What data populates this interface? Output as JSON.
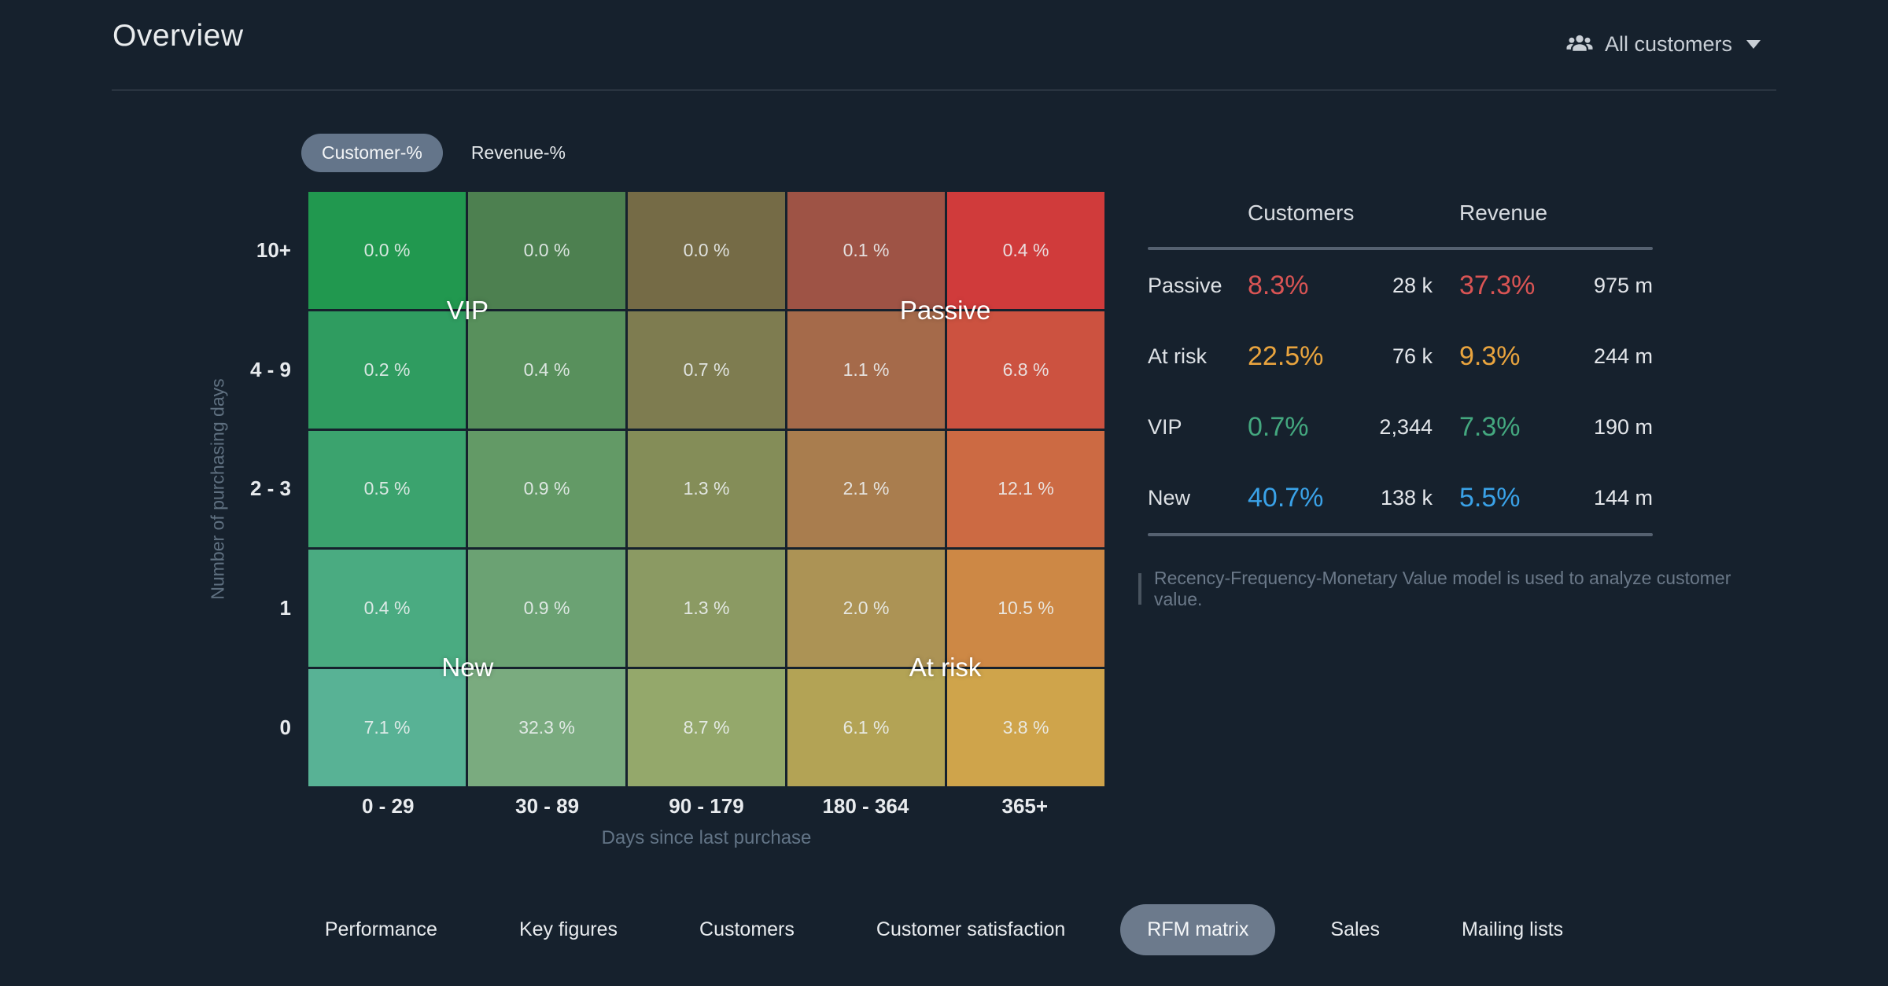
{
  "header": {
    "title": "Overview",
    "filter": {
      "label": "All customers",
      "icon": "people-group-icon"
    }
  },
  "metric_toggle": {
    "options": [
      {
        "label": "Customer-%",
        "selected": true
      },
      {
        "label": "Revenue-%",
        "selected": false
      }
    ]
  },
  "chart_data": {
    "type": "heatmap",
    "title": "",
    "metric": "Customer-%",
    "xlabel": "Days since last purchase",
    "ylabel": "Number of purchasing days",
    "x_categories": [
      "0 - 29",
      "30 - 89",
      "90 - 179",
      "180 - 364",
      "365+"
    ],
    "y_categories": [
      "10+",
      "4 - 9",
      "2 - 3",
      "1",
      "0"
    ],
    "values_pct": [
      [
        0.0,
        0.0,
        0.0,
        0.1,
        0.4
      ],
      [
        0.2,
        0.4,
        0.7,
        1.1,
        6.8
      ],
      [
        0.5,
        0.9,
        1.3,
        2.1,
        12.1
      ],
      [
        0.4,
        0.9,
        1.3,
        2.0,
        10.5
      ],
      [
        7.1,
        32.3,
        8.7,
        6.1,
        3.8
      ]
    ],
    "cell_labels": [
      [
        "0.0 %",
        "0.0 %",
        "0.0 %",
        "0.1 %",
        "0.4 %"
      ],
      [
        "0.2 %",
        "0.4 %",
        "0.7 %",
        "1.1 %",
        "6.8 %"
      ],
      [
        "0.5 %",
        "0.9 %",
        "1.3 %",
        "2.1 %",
        "12.1 %"
      ],
      [
        "0.4 %",
        "0.9 %",
        "1.3 %",
        "2.0 %",
        "10.5 %"
      ],
      [
        "7.1 %",
        "32.3 %",
        "8.7 %",
        "6.1 %",
        "3.8 %"
      ]
    ],
    "cell_colors": [
      [
        "#21984f",
        "#4d8050",
        "#756b46",
        "#9e5345",
        "#d03b3b"
      ],
      [
        "#2f9c60",
        "#58905c",
        "#7e7c50",
        "#a56a4a",
        "#cc5240"
      ],
      [
        "#3ba36e",
        "#639a66",
        "#848d58",
        "#a97d4e",
        "#cc6a43"
      ],
      [
        "#4aab81",
        "#6ba273",
        "#8b9a63",
        "#ac9355",
        "#cd8845"
      ],
      [
        "#58b295",
        "#7aab7f",
        "#94a86b",
        "#b3a355",
        "#cfa44b"
      ]
    ],
    "segment_labels": [
      {
        "label": "VIP",
        "quadrant": "top-left"
      },
      {
        "label": "Passive",
        "quadrant": "top-right"
      },
      {
        "label": "New",
        "quadrant": "bottom-left"
      },
      {
        "label": "At risk",
        "quadrant": "bottom-right"
      }
    ],
    "grid": false,
    "legend_position": "none"
  },
  "summary_table": {
    "col_headers": [
      "Customers",
      "Revenue"
    ],
    "rows": [
      {
        "segment": "Passive",
        "customers_pct": "8.3%",
        "customers_count": "28 k",
        "revenue_pct": "37.3%",
        "revenue_value": "975 m",
        "accent_color": "#d95454"
      },
      {
        "segment": "At risk",
        "customers_pct": "22.5%",
        "customers_count": "76 k",
        "revenue_pct": "9.3%",
        "revenue_value": "244 m",
        "accent_color": "#e9a43e"
      },
      {
        "segment": "VIP",
        "customers_pct": "0.7%",
        "customers_count": "2,344",
        "revenue_pct": "7.3%",
        "revenue_value": "190 m",
        "accent_color": "#44a87f"
      },
      {
        "segment": "New",
        "customers_pct": "40.7%",
        "customers_count": "138 k",
        "revenue_pct": "5.5%",
        "revenue_value": "144 m",
        "accent_color": "#3aa2e8"
      }
    ],
    "note": "Recency-Frequency-Monetary Value model is used to analyze customer value."
  },
  "tab_bar": {
    "tabs": [
      {
        "label": "Performance",
        "selected": false
      },
      {
        "label": "Key figures",
        "selected": false
      },
      {
        "label": "Customers",
        "selected": false
      },
      {
        "label": "Customer satisfaction",
        "selected": false
      },
      {
        "label": "RFM matrix",
        "selected": true
      },
      {
        "label": "Sales",
        "selected": false
      },
      {
        "label": "Mailing lists",
        "selected": false
      }
    ]
  },
  "colors": {
    "background": "#16212d",
    "selected_pill": "#6c7a8c",
    "toggle_pill": "#64758a",
    "divider": "#46505c",
    "table_rule": "#556170",
    "axis_title": "#5f7080",
    "tick_label": "#e8ebee",
    "note_text": "#6b7989"
  }
}
